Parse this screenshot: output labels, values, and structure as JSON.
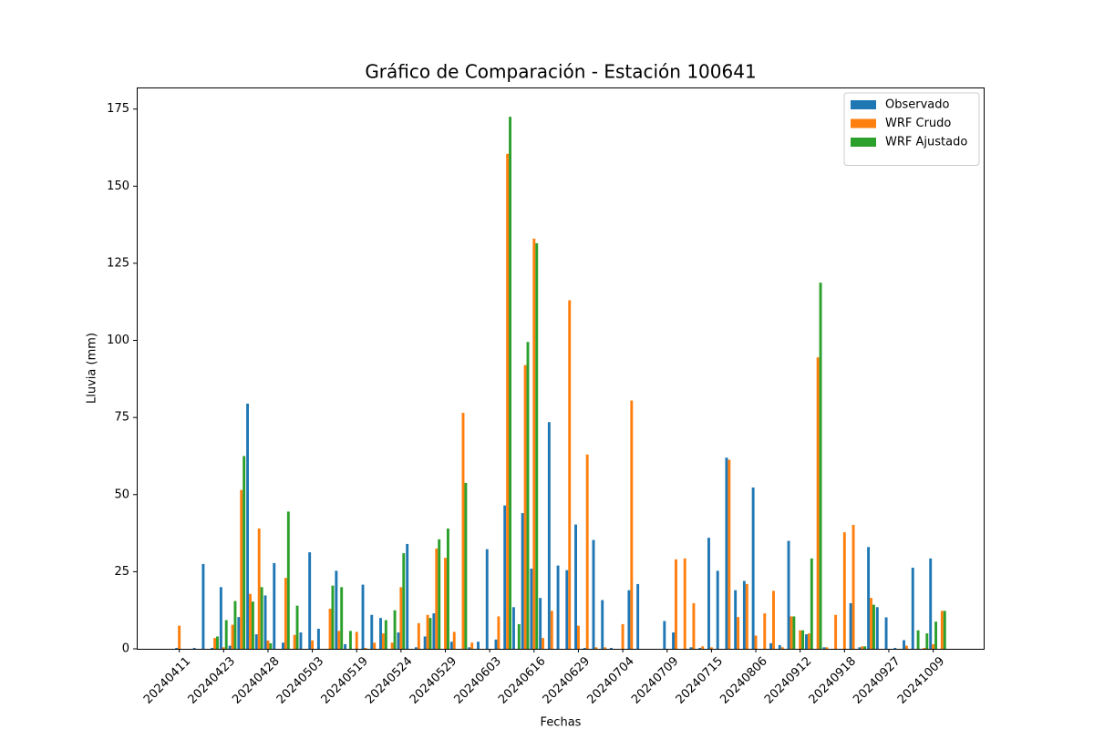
{
  "chart_data": {
    "type": "bar",
    "title": "Gráfico de Comparación - Estación 100641",
    "x_label": "Fechas",
    "y_label": "Lluvia (mm)",
    "categories": [
      "20240411",
      null,
      null,
      null,
      null,
      "20240423",
      null,
      null,
      null,
      null,
      "20240428",
      null,
      null,
      null,
      null,
      "20240503",
      null,
      null,
      null,
      null,
      "20240519",
      null,
      null,
      null,
      null,
      "20240524",
      null,
      null,
      null,
      null,
      "20240529",
      null,
      null,
      null,
      null,
      "20240603",
      null,
      null,
      null,
      null,
      "20240616",
      null,
      null,
      null,
      null,
      "20240629",
      null,
      null,
      null,
      null,
      "20240704",
      null,
      null,
      null,
      null,
      "20240709",
      null,
      null,
      null,
      null,
      "20240715",
      null,
      null,
      null,
      null,
      "20240806",
      null,
      null,
      null,
      null,
      "20240912",
      null,
      null,
      null,
      null,
      "20240918",
      null,
      null,
      null,
      null,
      "20240927",
      null,
      null,
      null,
      null,
      "20241009",
      null
    ],
    "series": [
      {
        "name": "Observado",
        "color": "#1f77b4",
        "values": [
          0.3,
          0,
          0.3,
          27.5,
          0.3,
          20,
          1,
          10.3,
          79.5,
          4.7,
          17.3,
          27.8,
          2,
          0,
          5.3,
          31.3,
          6.5,
          0,
          25.3,
          1.5,
          0,
          20.8,
          11,
          10,
          0,
          5.3,
          34,
          0.5,
          4,
          11.5,
          0,
          2.3,
          0,
          0.5,
          2.3,
          32.3,
          3,
          46.5,
          13.5,
          44,
          26,
          16.5,
          73.5,
          27,
          25.5,
          40.3,
          0.3,
          35.3,
          15.8,
          0.3,
          0,
          19,
          21,
          0,
          0,
          9,
          5.3,
          0,
          0.5,
          0.3,
          36,
          25.3,
          62,
          19,
          22,
          52.3,
          0,
          1.8,
          1.2,
          35,
          0,
          4.7,
          0,
          0.5,
          0,
          0,
          14.8,
          0.5,
          33,
          13.5,
          10.2,
          0.3,
          2.8,
          26.3,
          0,
          29.3,
          0
        ]
      },
      {
        "name": "WRF Crudo",
        "color": "#ff7f0e",
        "values": [
          7.5,
          0,
          0,
          0,
          3.5,
          0.5,
          7.8,
          51.5,
          17.8,
          39,
          2.7,
          0,
          23,
          4.5,
          0,
          2.7,
          0,
          13,
          5.8,
          0,
          5.5,
          0.3,
          2,
          5,
          2,
          20,
          0,
          8.3,
          11,
          32.5,
          29.5,
          5.5,
          76.5,
          2,
          0,
          0,
          10.5,
          160.5,
          0,
          92,
          133,
          3.5,
          12.3,
          0,
          113,
          7.5,
          63,
          0.5,
          0.5,
          0,
          8,
          80.5,
          0,
          0,
          0,
          0,
          29,
          29.3,
          14.8,
          0.8,
          0.5,
          0,
          61.3,
          10.3,
          21,
          4.3,
          11.5,
          18.8,
          0.5,
          10.5,
          6,
          5,
          94.5,
          0.5,
          11,
          37.8,
          40.2,
          0.8,
          16.5,
          0,
          0,
          0,
          1,
          0,
          0.3,
          1.5,
          12.3
        ]
      },
      {
        "name": "WRF Ajustado",
        "color": "#2ca02c",
        "values": [
          0,
          0,
          0,
          0,
          4,
          9.3,
          15.5,
          62.5,
          15.3,
          20,
          1.8,
          0,
          44.5,
          14,
          0,
          0,
          0,
          20.5,
          20,
          5.8,
          0,
          0,
          0,
          9.3,
          12.5,
          31,
          0,
          0,
          10,
          35.5,
          39,
          0,
          53.8,
          0,
          0,
          0,
          0,
          172.5,
          8,
          99.5,
          131.5,
          0,
          0,
          0,
          0,
          0,
          0,
          0,
          0,
          0,
          0,
          0,
          0,
          0,
          0,
          0,
          0,
          0,
          0,
          0,
          0,
          0,
          0,
          0,
          0,
          0,
          0,
          0,
          0,
          10.5,
          6,
          29.3,
          118.7,
          0,
          0,
          0,
          0,
          0.8,
          14.3,
          0,
          0,
          0,
          0,
          6,
          5,
          8.8,
          12.3
        ]
      }
    ],
    "ylim": [
      0,
      182
    ],
    "yticks": [
      0,
      25,
      50,
      75,
      100,
      125,
      150,
      175
    ],
    "legend": "upper right"
  }
}
